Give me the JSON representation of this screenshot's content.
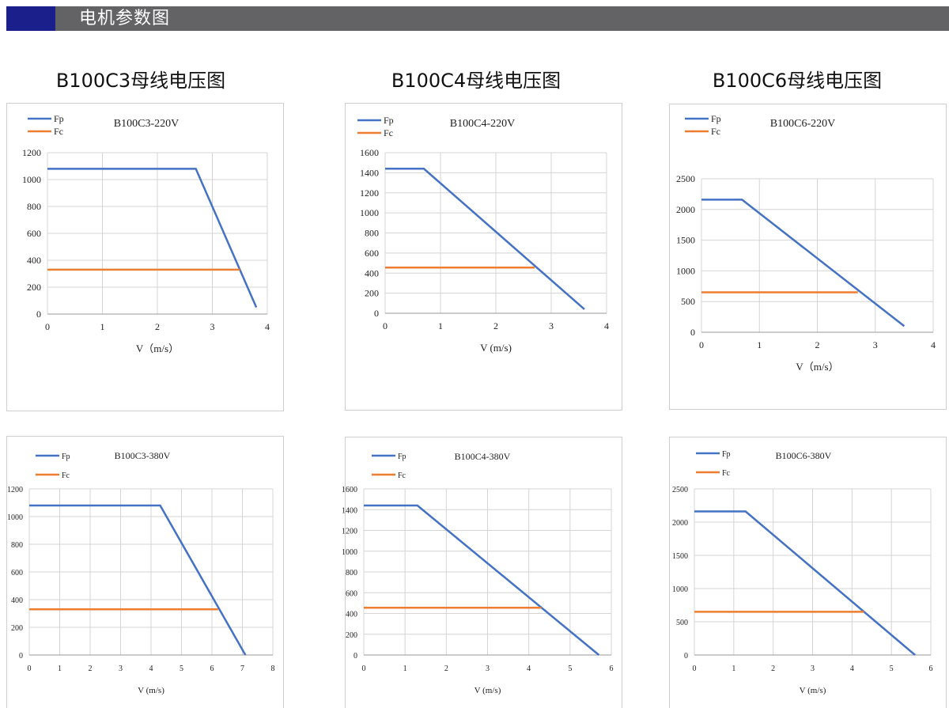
{
  "header": {
    "title": "电机参数图",
    "accent_color": "#1b1f8c",
    "bar_color": "#636365"
  },
  "section_titles": [
    "B100C3母线电压图",
    "B100C4母线电压图",
    "B100C6母线电压图"
  ],
  "series_colors": {
    "Fp": "#4472c4",
    "Fc": "#ed7d31"
  },
  "chart_data": [
    {
      "type": "line",
      "title": "B100C3-220V",
      "xlabel": "V（m/s）",
      "ylabel": "",
      "xlim": [
        0,
        4
      ],
      "ylim": [
        0,
        1200
      ],
      "xticks": [
        "0",
        "1",
        "2",
        "3",
        "4"
      ],
      "yticks": [
        "0",
        "200",
        "400",
        "600",
        "800",
        "1000",
        "1200"
      ],
      "grid": true,
      "legend": "top-left",
      "series": [
        {
          "name": "Fp",
          "x": [
            0,
            2.7,
            3.8
          ],
          "y": [
            1080,
            1080,
            50
          ]
        },
        {
          "name": "Fc",
          "x": [
            0,
            3.5
          ],
          "y": [
            330,
            330
          ]
        }
      ]
    },
    {
      "type": "line",
      "title": "B100C4-220V",
      "xlabel": "V (m/s)",
      "ylabel": "",
      "xlim": [
        0,
        4
      ],
      "ylim": [
        0,
        1600
      ],
      "xticks": [
        "0",
        "1",
        "2",
        "3",
        "4"
      ],
      "yticks": [
        "0",
        "200",
        "400",
        "600",
        "800",
        "1000",
        "1200",
        "1400",
        "1600"
      ],
      "grid": true,
      "legend": "top-left",
      "series": [
        {
          "name": "Fp",
          "x": [
            0,
            0.7,
            3.6
          ],
          "y": [
            1440,
            1440,
            40
          ]
        },
        {
          "name": "Fc",
          "x": [
            0,
            2.7
          ],
          "y": [
            455,
            455
          ]
        }
      ]
    },
    {
      "type": "line",
      "title": "B100C6-220V",
      "xlabel": "V（m/s）",
      "ylabel": "",
      "xlim": [
        0,
        4
      ],
      "ylim": [
        0,
        2500
      ],
      "xticks": [
        "0",
        "1",
        "2",
        "3",
        "4"
      ],
      "yticks": [
        "0",
        "500",
        "1000",
        "1500",
        "2000",
        "2500"
      ],
      "grid": true,
      "legend": "top-left",
      "series": [
        {
          "name": "Fp",
          "x": [
            0,
            0.7,
            3.5
          ],
          "y": [
            2160,
            2160,
            100
          ]
        },
        {
          "name": "Fc",
          "x": [
            0,
            2.7
          ],
          "y": [
            650,
            650
          ]
        }
      ]
    },
    {
      "type": "line",
      "title": "B100C3-380V",
      "xlabel": "V (m/s)",
      "ylabel": "",
      "xlim": [
        0,
        8
      ],
      "ylim": [
        0,
        1200
      ],
      "xticks": [
        "0",
        "1",
        "2",
        "3",
        "4",
        "5",
        "6",
        "7",
        "8"
      ],
      "yticks": [
        "0",
        "200",
        "400",
        "600",
        "800",
        "1000",
        "1200"
      ],
      "grid": true,
      "legend": "top-left",
      "series": [
        {
          "name": "Fp",
          "x": [
            0,
            4.3,
            7.1
          ],
          "y": [
            1080,
            1080,
            0
          ]
        },
        {
          "name": "Fc",
          "x": [
            0,
            6.2
          ],
          "y": [
            330,
            330
          ]
        }
      ]
    },
    {
      "type": "line",
      "title": "B100C4-380V",
      "xlabel": "V (m/s)",
      "ylabel": "",
      "xlim": [
        0,
        6
      ],
      "ylim": [
        0,
        1600
      ],
      "xticks": [
        "0",
        "1",
        "2",
        "3",
        "4",
        "5",
        "6"
      ],
      "yticks": [
        "0",
        "200",
        "400",
        "600",
        "800",
        "1000",
        "1200",
        "1400",
        "1600"
      ],
      "grid": true,
      "legend": "top-left",
      "series": [
        {
          "name": "Fp",
          "x": [
            0,
            1.3,
            5.7
          ],
          "y": [
            1440,
            1440,
            0
          ]
        },
        {
          "name": "Fc",
          "x": [
            0,
            4.3
          ],
          "y": [
            455,
            455
          ]
        }
      ]
    },
    {
      "type": "line",
      "title": "B100C6-380V",
      "xlabel": "V (m/s)",
      "ylabel": "",
      "xlim": [
        0,
        6
      ],
      "ylim": [
        0,
        2500
      ],
      "xticks": [
        "0",
        "1",
        "2",
        "3",
        "4",
        "5",
        "6"
      ],
      "yticks": [
        "0",
        "500",
        "1000",
        "1500",
        "2000",
        "2500"
      ],
      "grid": true,
      "legend": "top-left",
      "series": [
        {
          "name": "Fp",
          "x": [
            0,
            1.3,
            5.6
          ],
          "y": [
            2160,
            2160,
            0
          ]
        },
        {
          "name": "Fc",
          "x": [
            0,
            4.3
          ],
          "y": [
            650,
            650
          ]
        }
      ]
    }
  ]
}
